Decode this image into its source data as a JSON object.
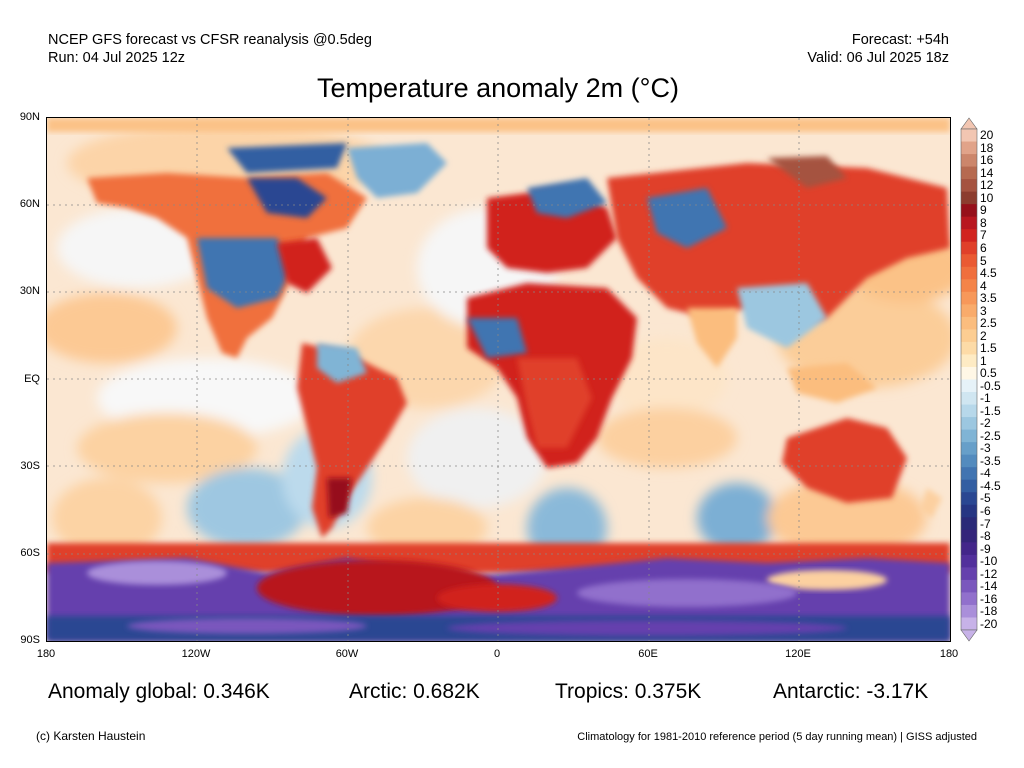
{
  "header": {
    "model_line": "NCEP GFS forecast vs CFSR reanalysis @0.5deg",
    "run_line": "Run: 04 Jul 2025 12z",
    "forecast_line": "Forecast: +54h",
    "valid_line": "Valid: 06 Jul 2025 18z"
  },
  "title": "Temperature anomaly 2m (°C)",
  "lat_labels": [
    "90N",
    "60N",
    "30N",
    "EQ",
    "30S",
    "60S",
    "90S"
  ],
  "lon_labels": [
    "180",
    "120W",
    "60W",
    "0",
    "60E",
    "120E",
    "180"
  ],
  "colorbar": {
    "labels": [
      "20",
      "18",
      "16",
      "14",
      "12",
      "10",
      "9",
      "8",
      "7",
      "6",
      "5",
      "4.5",
      "4",
      "3.5",
      "3",
      "2.5",
      "2",
      "1.5",
      "1",
      "0.5",
      "-0.5",
      "-1",
      "-1.5",
      "-2",
      "-2.5",
      "-3",
      "-3.5",
      "-4",
      "-4.5",
      "-5",
      "-6",
      "-7",
      "-8",
      "-9",
      "-10",
      "-12",
      "-14",
      "-16",
      "-18",
      "-20"
    ],
    "colors": [
      "#f2c6b2",
      "#e1a389",
      "#cc866b",
      "#b66a50",
      "#a55340",
      "#8c3c2e",
      "#96101a",
      "#b8171f",
      "#d1241f",
      "#e0402a",
      "#ea5a33",
      "#f06f3d",
      "#f48449",
      "#f7985a",
      "#f9ab6b",
      "#fbbd7e",
      "#fccd92",
      "#fddba7",
      "#feebc4",
      "#fff7e6",
      "#e6f2f8",
      "#d0e6f1",
      "#b7d8ea",
      "#9cc7e0",
      "#80b4d5",
      "#679fc9",
      "#538bbe",
      "#4174b1",
      "#335ea2",
      "#2a4792",
      "#263683",
      "#2a2a78",
      "#34257a",
      "#43268a",
      "#52309c",
      "#6541ad",
      "#7a57bd",
      "#9170cc",
      "#aa8fda",
      "#c7b2e8"
    ]
  },
  "stats": {
    "global": "Anomaly global: 0.346K",
    "arctic": "Arctic: 0.682K",
    "tropics": "Tropics: 0.375K",
    "antarctic": "Antarctic: -3.17K"
  },
  "footer": {
    "copyright": "(c) Karsten Haustein",
    "climatology": "Climatology for 1981-2010 reference period (5 day running mean) | GISS adjusted"
  }
}
